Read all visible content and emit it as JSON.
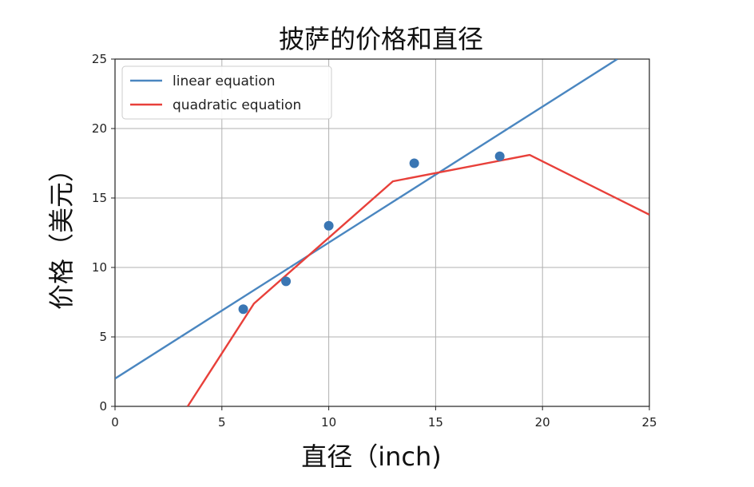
{
  "chart_data": {
    "type": "scatter",
    "title": "披萨的价格和直径",
    "xlabel": "直径（inch)",
    "ylabel": "价格（美元）",
    "xlim": [
      0,
      25
    ],
    "ylim": [
      0,
      25
    ],
    "xticks": [
      0,
      5,
      10,
      15,
      20,
      25
    ],
    "yticks": [
      0,
      5,
      10,
      15,
      20,
      25
    ],
    "grid": true,
    "legend_position": "top-left",
    "points": {
      "x": [
        6,
        8,
        10,
        14,
        18
      ],
      "y": [
        7,
        9,
        13,
        17.5,
        18
      ],
      "color": "#3a76b3"
    },
    "series": [
      {
        "name": "linear equation",
        "color": "#4a86c0",
        "x": [
          0,
          23.5
        ],
        "y": [
          2.0,
          25.0
        ]
      },
      {
        "name": "quadratic equation",
        "color": "#e8403a",
        "x": [
          3.4,
          6.5,
          13.0,
          19.4,
          25.0
        ],
        "y": [
          0.0,
          7.4,
          16.2,
          18.1,
          13.8
        ]
      }
    ]
  }
}
